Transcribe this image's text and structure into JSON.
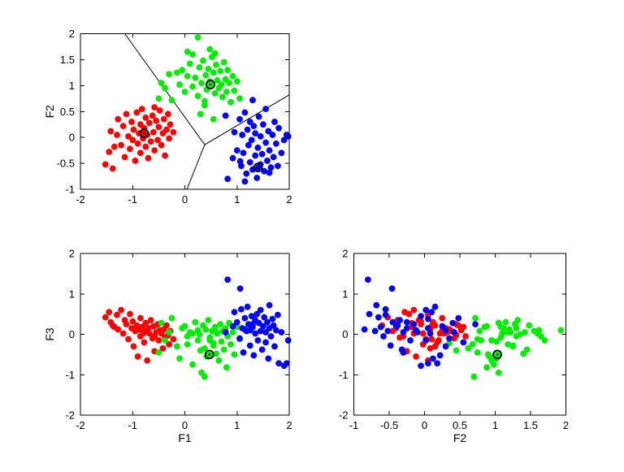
{
  "figure": {
    "background": "#FFFFFF",
    "axis_color": "#000000",
    "boundary_color": "#000000",
    "center_marker_color": "#000000"
  },
  "dataset": {
    "features": [
      "f1",
      "f2",
      "f3"
    ],
    "clusters": [
      {
        "name": "cluster-red",
        "color": "#FF0000",
        "points": [
          [
            -1.52,
            -0.52,
            0.42
          ],
          [
            -1.45,
            -0.28,
            0.55
          ],
          [
            -1.42,
            0.12,
            0.3
          ],
          [
            -1.38,
            -0.6,
            0.22
          ],
          [
            -1.35,
            -0.18,
            0.18
          ],
          [
            -1.3,
            0.05,
            0.48
          ],
          [
            -1.28,
            0.35,
            0.12
          ],
          [
            -1.22,
            -0.15,
            0.6
          ],
          [
            -1.18,
            0.22,
            0.02
          ],
          [
            -1.15,
            -0.38,
            0.35
          ],
          [
            -1.12,
            0.45,
            0.25
          ],
          [
            -1.08,
            0.02,
            -0.12
          ],
          [
            -1.05,
            -0.22,
            0.5
          ],
          [
            -1.02,
            0.3,
            0.15
          ],
          [
            -1.0,
            -0.05,
            0.32
          ],
          [
            -0.98,
            0.15,
            -0.3
          ],
          [
            -0.95,
            -0.45,
            0.08
          ],
          [
            -0.92,
            0.48,
            0.22
          ],
          [
            -0.9,
            -0.12,
            -0.55
          ],
          [
            -0.88,
            0.08,
            0.12
          ],
          [
            -0.85,
            0.25,
            0.4
          ],
          [
            -0.85,
            -0.3,
            -0.05
          ],
          [
            -0.82,
            0.55,
            0.18
          ],
          [
            -0.8,
            -0.02,
            0.02
          ],
          [
            -0.78,
            0.18,
            -0.2
          ],
          [
            -0.75,
            -0.18,
            0.28
          ],
          [
            -0.75,
            0.38,
            0.08
          ],
          [
            -0.72,
            0.05,
            -0.65
          ],
          [
            -0.7,
            -0.4,
            0.15
          ],
          [
            -0.68,
            0.28,
            0.02
          ],
          [
            -0.65,
            -0.08,
            0.35
          ],
          [
            -0.62,
            0.42,
            -0.1
          ],
          [
            -0.6,
            0.1,
            0.2
          ],
          [
            -0.58,
            -0.25,
            -0.42
          ],
          [
            -0.58,
            0.58,
            -0.05
          ],
          [
            -0.55,
            0.32,
            0.05
          ],
          [
            -0.52,
            -0.05,
            0.25
          ],
          [
            -0.5,
            0.2,
            -0.15
          ],
          [
            -0.48,
            0.52,
            0.1
          ],
          [
            -0.45,
            -0.15,
            0.02
          ],
          [
            -0.42,
            0.08,
            -0.35
          ],
          [
            -0.4,
            0.35,
            0.12
          ],
          [
            -0.38,
            -0.35,
            -0.08
          ],
          [
            -0.35,
            0.15,
            0.22
          ],
          [
            -0.32,
            0.45,
            -0.02
          ],
          [
            -0.3,
            -0.02,
            -0.25
          ],
          [
            -0.28,
            0.25,
            0.08
          ],
          [
            -0.22,
            0.1,
            -0.12
          ]
        ]
      },
      {
        "name": "cluster-green",
        "color": "#00EE00",
        "points": [
          [
            0.25,
            1.93,
            0.1
          ],
          [
            0.05,
            1.65,
            -0.05
          ],
          [
            -0.05,
            1.3,
            0.15
          ],
          [
            -0.15,
            1.25,
            -0.3
          ],
          [
            -0.3,
            1.22,
            0.05
          ],
          [
            -0.38,
            0.95,
            -0.15
          ],
          [
            -0.45,
            1.05,
            0.28
          ],
          [
            -0.5,
            0.75,
            -0.45
          ],
          [
            -0.25,
            0.72,
            0.4
          ],
          [
            -0.1,
            1.02,
            -0.6
          ],
          [
            0.0,
            0.88,
            0.2
          ],
          [
            0.05,
            1.18,
            -0.25
          ],
          [
            0.1,
            1.42,
            0.05
          ],
          [
            0.15,
            0.98,
            -0.75
          ],
          [
            0.15,
            1.6,
            0.02
          ],
          [
            0.2,
            1.15,
            0.3
          ],
          [
            0.25,
            0.8,
            -0.15
          ],
          [
            0.28,
            1.35,
            0.0
          ],
          [
            0.3,
            0.45,
            -0.4
          ],
          [
            0.32,
            1.05,
            -0.95
          ],
          [
            0.35,
            1.48,
            0.22
          ],
          [
            0.38,
            0.62,
            -0.35
          ],
          [
            0.38,
            0.7,
            -1.05
          ],
          [
            0.4,
            1.2,
            0.12
          ],
          [
            0.42,
            0.92,
            -0.55
          ],
          [
            0.45,
            1.32,
            0.35
          ],
          [
            0.48,
            1.08,
            -0.08
          ],
          [
            0.48,
            1.7,
            -0.15
          ],
          [
            0.52,
            1.55,
            0.08
          ],
          [
            0.55,
            0.35,
            -0.22
          ],
          [
            0.55,
            1.25,
            -0.28
          ],
          [
            0.58,
            0.85,
            0.18
          ],
          [
            0.58,
            1.62,
            0.1
          ],
          [
            0.6,
            1.4,
            -0.48
          ],
          [
            0.62,
            1.1,
            0.02
          ],
          [
            0.65,
            0.95,
            -0.65
          ],
          [
            0.68,
            1.28,
            0.25
          ],
          [
            0.7,
            1.02,
            -0.18
          ],
          [
            0.72,
            0.78,
            0.08
          ],
          [
            0.75,
            1.45,
            -0.38
          ],
          [
            0.78,
            1.12,
            0.15
          ],
          [
            0.8,
            0.88,
            -0.82
          ],
          [
            0.82,
            1.3,
            -0.05
          ],
          [
            0.85,
            1.05,
            0.28
          ],
          [
            0.88,
            0.68,
            -0.25
          ],
          [
            0.92,
            1.18,
            0.05
          ],
          [
            0.95,
            0.9,
            -0.5
          ],
          [
            1.0,
            1.08,
            0.18
          ],
          [
            1.05,
            0.75,
            -0.12
          ]
        ]
      },
      {
        "name": "cluster-blue",
        "color": "#0000FF",
        "points": [
          [
            0.82,
            -0.8,
            1.35
          ],
          [
            1.06,
            -0.46,
            1.13
          ],
          [
            0.78,
            0.42,
            0.05
          ],
          [
            0.95,
            0.1,
            0.55
          ],
          [
            0.92,
            -0.4,
            0.2
          ],
          [
            1.0,
            -0.25,
            0.3
          ],
          [
            1.05,
            0.35,
            -0.1
          ],
          [
            1.08,
            -0.55,
            0.62
          ],
          [
            1.1,
            0.05,
            0.15
          ],
          [
            1.12,
            -0.3,
            -0.45
          ],
          [
            1.15,
            0.48,
            0.4
          ],
          [
            1.15,
            -0.85,
            0.12
          ],
          [
            1.18,
            -0.7,
            0.08
          ],
          [
            1.2,
            0.15,
            0.68
          ],
          [
            1.22,
            -0.15,
            0.25
          ],
          [
            1.25,
            -0.48,
            -0.28
          ],
          [
            1.25,
            0.3,
            0.1
          ],
          [
            1.28,
            -0.05,
            0.45
          ],
          [
            1.3,
            -0.62,
            0.18
          ],
          [
            1.3,
            0.72,
            0.25
          ],
          [
            1.32,
            0.22,
            -0.52
          ],
          [
            1.35,
            -0.35,
            0.35
          ],
          [
            1.35,
            0.08,
            0.02
          ],
          [
            1.38,
            -0.78,
            0.5
          ],
          [
            1.4,
            -0.2,
            -0.15
          ],
          [
            1.42,
            0.4,
            0.28
          ],
          [
            1.45,
            -0.52,
            0.08
          ],
          [
            1.45,
            0.02,
            0.6
          ],
          [
            1.48,
            -0.32,
            -0.38
          ],
          [
            1.5,
            0.25,
            0.2
          ],
          [
            1.52,
            -0.65,
            0.42
          ],
          [
            1.55,
            -0.1,
            0.05
          ],
          [
            1.55,
            0.55,
            -0.2
          ],
          [
            1.58,
            -0.45,
            0.3
          ],
          [
            1.6,
            0.12,
            -0.6
          ],
          [
            1.62,
            -0.25,
            0.15
          ],
          [
            1.62,
            -0.68,
            0.72
          ],
          [
            1.65,
            -0.58,
            -0.05
          ],
          [
            1.68,
            0.05,
            0.38
          ],
          [
            1.7,
            -0.38,
            0.22
          ],
          [
            1.72,
            0.3,
            -0.3
          ],
          [
            1.75,
            -0.12,
            0.1
          ],
          [
            1.78,
            -0.55,
            0.48
          ],
          [
            1.8,
            0.18,
            -0.72
          ],
          [
            1.85,
            -0.3,
            0.05
          ],
          [
            1.9,
            -0.05,
            -0.78
          ],
          [
            1.95,
            0.05,
            -0.72
          ],
          [
            1.98,
            0.02,
            -0.15
          ]
        ]
      }
    ]
  },
  "chart_data": [
    {
      "type": "scatter",
      "name": "f1-vs-f2",
      "title": "",
      "xlabel": "",
      "ylabel": "F2",
      "x_feature": "f1",
      "y_feature": "f2",
      "xlim": [
        -2,
        2
      ],
      "ylim": [
        -1,
        2
      ],
      "xticks": [
        -2,
        -1,
        0,
        1,
        2
      ],
      "yticks": [
        -1,
        -0.5,
        0,
        0.5,
        1,
        1.5,
        2
      ],
      "grid": false,
      "legend": null,
      "boundary_lines": [
        [
          [
            0.38,
            -0.14
          ],
          [
            -1.15,
            2.0
          ]
        ],
        [
          [
            0.38,
            -0.14
          ],
          [
            2.0,
            0.82
          ]
        ],
        [
          [
            0.38,
            -0.14
          ],
          [
            0.04,
            -1.0
          ]
        ]
      ],
      "centers": [
        {
          "x": -0.78,
          "y": 0.08,
          "dot_color": "#FF0000"
        },
        {
          "x": 0.49,
          "y": 1.02,
          "dot_color": "#00EE00"
        },
        {
          "x": 1.4,
          "y": -0.58,
          "dot_color": "#0000FF"
        }
      ]
    },
    {
      "type": "scatter",
      "name": "f1-vs-f3",
      "title": "",
      "xlabel": "F1",
      "ylabel": "F3",
      "x_feature": "f1",
      "y_feature": "f3",
      "xlim": [
        -2,
        2
      ],
      "ylim": [
        -2,
        2
      ],
      "xticks": [
        -2,
        -1,
        0,
        1,
        2
      ],
      "yticks": [
        -2,
        -1,
        0,
        1,
        2
      ],
      "grid": false,
      "legend": null,
      "boundary_lines": [],
      "centers": [
        {
          "x": 0.47,
          "y": -0.5,
          "dot_color": "#00EE00"
        }
      ]
    },
    {
      "type": "scatter",
      "name": "f2-vs-f3",
      "title": "",
      "xlabel": "F2",
      "ylabel": "",
      "x_feature": "f2",
      "y_feature": "f3",
      "xlim": [
        -1,
        2
      ],
      "ylim": [
        -2,
        2
      ],
      "xticks": [
        -1,
        -0.5,
        0,
        0.5,
        1,
        1.5,
        2
      ],
      "yticks": [
        -2,
        -1,
        0,
        1,
        2
      ],
      "grid": false,
      "legend": null,
      "boundary_lines": [],
      "centers": [
        {
          "x": 1.03,
          "y": -0.5,
          "dot_color": "#00EE00"
        }
      ]
    }
  ]
}
